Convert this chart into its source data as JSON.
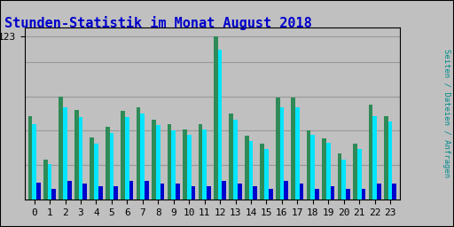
{
  "title": "Stunden-Statistik im Monat August 2018",
  "ylabel_right": "Seiten / Dateien / Anfragen",
  "background_color": "#c0c0c0",
  "plot_bg_color": "#c0c0c0",
  "title_color": "#0000cc",
  "bar_color_seiten": "#2e8b57",
  "bar_color_dateien": "#00e5ff",
  "bar_color_anfragen": "#0000cd",
  "ylabel_right_color": "#008b8b",
  "hours": [
    0,
    1,
    2,
    3,
    4,
    5,
    6,
    7,
    8,
    9,
    10,
    11,
    12,
    13,
    14,
    15,
    16,
    17,
    18,
    19,
    20,
    21,
    22,
    23
  ],
  "seiten": [
    63,
    30,
    78,
    68,
    47,
    55,
    67,
    70,
    60,
    57,
    53,
    57,
    123,
    65,
    48,
    42,
    77,
    77,
    52,
    46,
    35,
    42,
    72,
    63
  ],
  "dateien": [
    57,
    27,
    70,
    62,
    42,
    50,
    62,
    65,
    56,
    52,
    49,
    53,
    113,
    60,
    44,
    38,
    70,
    70,
    49,
    43,
    30,
    38,
    63,
    59
  ],
  "anfragen": [
    13,
    8,
    14,
    12,
    10,
    10,
    14,
    14,
    12,
    12,
    10,
    10,
    14,
    12,
    10,
    8,
    14,
    12,
    8,
    10,
    8,
    8,
    12,
    12
  ],
  "ylim": [
    0,
    130
  ],
  "yticks": [
    123
  ],
  "grid_color": "#999999",
  "grid_y_positions": [
    26,
    52,
    78,
    104,
    123
  ],
  "border_color": "#000000",
  "title_fontsize": 11,
  "tick_fontsize": 8,
  "bar_width": 0.27
}
